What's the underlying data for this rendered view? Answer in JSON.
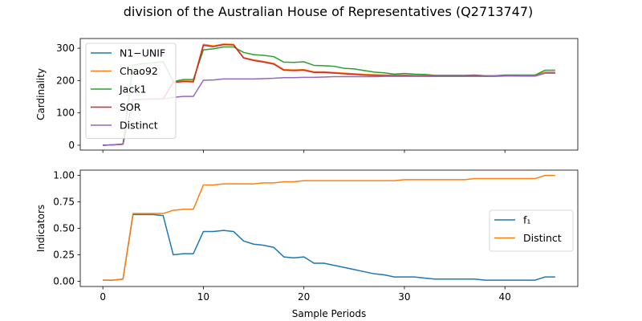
{
  "title": "division of the Australian House of Representatives (Q2713747)",
  "chart_data": [
    {
      "type": "line",
      "ylabel": "Cardinality",
      "xlim": [
        -2.25,
        47.25
      ],
      "ylim": [
        -15,
        330
      ],
      "xticks": [
        0,
        10,
        20,
        30,
        40
      ],
      "yticks": [
        0,
        100,
        200,
        300
      ],
      "legend_position": "upper-left",
      "x": [
        0,
        1,
        2,
        3,
        4,
        5,
        6,
        7,
        8,
        9,
        10,
        11,
        12,
        13,
        14,
        15,
        16,
        17,
        18,
        19,
        20,
        21,
        22,
        23,
        24,
        25,
        26,
        27,
        28,
        29,
        30,
        31,
        32,
        33,
        34,
        35,
        36,
        37,
        38,
        39,
        40,
        41,
        42,
        43,
        44,
        45
      ],
      "series": [
        {
          "name": "N1−UNIF",
          "color": "#1f77b4",
          "values": [
            0,
            1,
            3,
            140,
            142,
            143,
            143,
            195,
            198,
            197,
            310,
            306,
            312,
            311,
            270,
            263,
            258,
            252,
            233,
            232,
            233,
            226,
            226,
            224,
            222,
            220,
            218,
            217,
            216,
            216,
            216,
            215,
            215,
            214,
            214,
            214,
            214,
            215,
            214,
            214,
            215,
            215,
            215,
            215,
            225,
            225
          ]
        },
        {
          "name": "Chao92",
          "color": "#ff7f0e",
          "values": [
            0,
            1,
            3,
            141,
            143,
            144,
            144,
            196,
            199,
            198,
            312,
            307,
            313,
            312,
            271,
            264,
            259,
            253,
            234,
            233,
            234,
            227,
            227,
            225,
            223,
            221,
            219,
            218,
            217,
            217,
            217,
            216,
            216,
            215,
            215,
            215,
            215,
            216,
            215,
            215,
            216,
            216,
            216,
            216,
            226,
            226
          ]
        },
        {
          "name": "Jack1",
          "color": "#2ca02c",
          "values": [
            0,
            1,
            4,
            248,
            252,
            255,
            258,
            197,
            203,
            203,
            295,
            298,
            304,
            304,
            287,
            280,
            278,
            274,
            257,
            256,
            258,
            247,
            246,
            244,
            238,
            236,
            231,
            226,
            224,
            220,
            222,
            220,
            219,
            216,
            216,
            216,
            216,
            217,
            215,
            215,
            217,
            217,
            217,
            217,
            232,
            232
          ]
        },
        {
          "name": "SOR",
          "color": "#d62728",
          "values": [
            0,
            1,
            3,
            140,
            142,
            143,
            143,
            194,
            197,
            196,
            309,
            305,
            311,
            310,
            270,
            262,
            257,
            251,
            232,
            231,
            232,
            225,
            225,
            223,
            221,
            219,
            217,
            216,
            215,
            215,
            215,
            214,
            214,
            213,
            213,
            213,
            213,
            214,
            213,
            213,
            214,
            214,
            214,
            214,
            223,
            223
          ]
        },
        {
          "name": "Distinct",
          "color": "#9467bd",
          "values": [
            0,
            1,
            3,
            140,
            142,
            143,
            143,
            148,
            151,
            151,
            201,
            202,
            205,
            205,
            205,
            205,
            206,
            207,
            209,
            209,
            210,
            210,
            211,
            212,
            212,
            212,
            212,
            212,
            213,
            213,
            213,
            213,
            213,
            213,
            213,
            213,
            213,
            213,
            213,
            214,
            214,
            214,
            215,
            215,
            223,
            223
          ]
        }
      ]
    },
    {
      "type": "line",
      "xlabel": "Sample Periods",
      "ylabel": "Indicators",
      "xlim": [
        -2.25,
        47.25
      ],
      "ylim": [
        -0.05,
        1.05
      ],
      "xticks": [
        0,
        10,
        20,
        30,
        40
      ],
      "yticks": [
        0.0,
        0.25,
        0.5,
        0.75,
        1.0
      ],
      "legend_position": "center-right",
      "x": [
        0,
        1,
        2,
        3,
        4,
        5,
        6,
        7,
        8,
        9,
        10,
        11,
        12,
        13,
        14,
        15,
        16,
        17,
        18,
        19,
        20,
        21,
        22,
        23,
        24,
        25,
        26,
        27,
        28,
        29,
        30,
        31,
        32,
        33,
        34,
        35,
        36,
        37,
        38,
        39,
        40,
        41,
        42,
        43,
        44,
        45
      ],
      "series": [
        {
          "name": "f₁",
          "color": "#1f77b4",
          "values": [
            0.01,
            0.01,
            0.02,
            0.63,
            0.63,
            0.63,
            0.62,
            0.25,
            0.26,
            0.26,
            0.47,
            0.47,
            0.48,
            0.47,
            0.38,
            0.35,
            0.34,
            0.32,
            0.23,
            0.22,
            0.23,
            0.17,
            0.17,
            0.15,
            0.13,
            0.11,
            0.09,
            0.07,
            0.06,
            0.04,
            0.04,
            0.04,
            0.03,
            0.02,
            0.02,
            0.02,
            0.02,
            0.02,
            0.01,
            0.01,
            0.01,
            0.01,
            0.01,
            0.01,
            0.04,
            0.04
          ]
        },
        {
          "name": "Distinct",
          "color": "#ff7f0e",
          "values": [
            0.01,
            0.01,
            0.02,
            0.64,
            0.64,
            0.64,
            0.64,
            0.67,
            0.68,
            0.68,
            0.91,
            0.91,
            0.92,
            0.92,
            0.92,
            0.92,
            0.93,
            0.93,
            0.94,
            0.94,
            0.95,
            0.95,
            0.95,
            0.95,
            0.95,
            0.95,
            0.95,
            0.95,
            0.95,
            0.95,
            0.96,
            0.96,
            0.96,
            0.96,
            0.96,
            0.96,
            0.96,
            0.97,
            0.97,
            0.97,
            0.97,
            0.97,
            0.97,
            0.97,
            1.0,
            1.0
          ]
        }
      ]
    }
  ]
}
